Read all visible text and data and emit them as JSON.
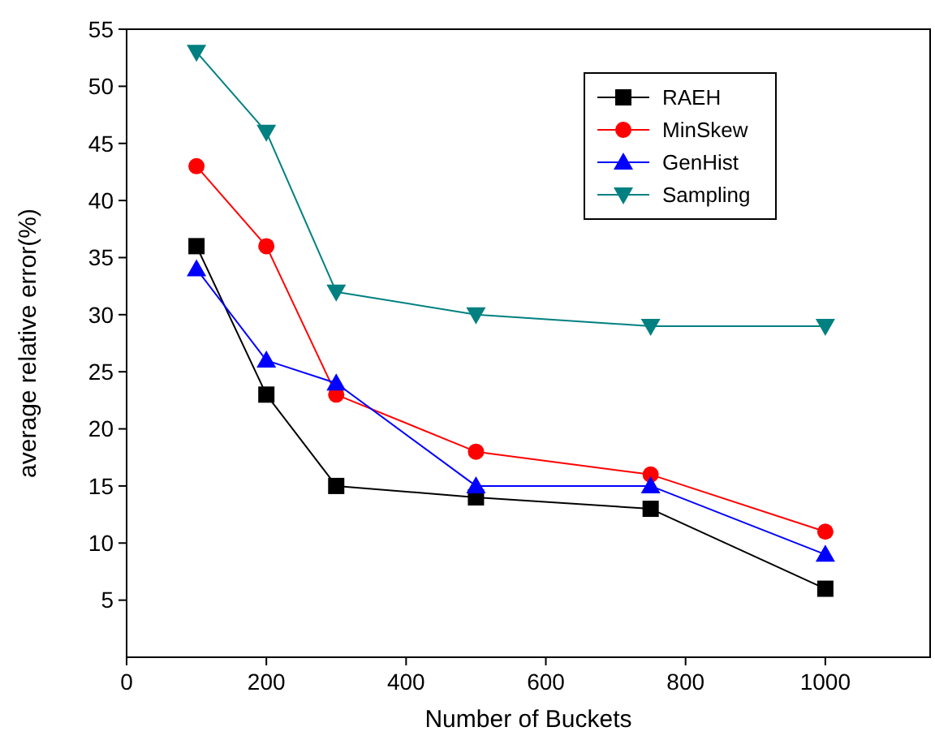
{
  "chart_data": {
    "type": "line",
    "xlabel": "Number of Buckets",
    "ylabel": "average relative error(%)",
    "x": [
      100,
      200,
      300,
      500,
      750,
      1000
    ],
    "xlim": [
      0,
      1150
    ],
    "xticks": [
      0,
      200,
      400,
      600,
      800,
      1000
    ],
    "ylim": [
      0,
      55
    ],
    "yticks": [
      5,
      10,
      15,
      20,
      25,
      30,
      35,
      40,
      45,
      50,
      55
    ],
    "grid": false,
    "legend": "top right",
    "line_style": "solid",
    "series": [
      {
        "name": "RAEH",
        "color": "#000000",
        "marker": "square",
        "values": [
          36,
          23,
          15,
          14,
          13,
          6
        ]
      },
      {
        "name": "MinSkew",
        "color": "#ff0000",
        "marker": "circle",
        "values": [
          43,
          36,
          23,
          18,
          16,
          11
        ]
      },
      {
        "name": "GenHist",
        "color": "#0000ff",
        "marker": "triangle",
        "values": [
          34,
          26,
          24,
          15,
          15,
          9
        ]
      },
      {
        "name": "Sampling",
        "color": "#008080",
        "marker": "triangle-down",
        "values": [
          53,
          46,
          32,
          30,
          29,
          29
        ]
      }
    ]
  }
}
